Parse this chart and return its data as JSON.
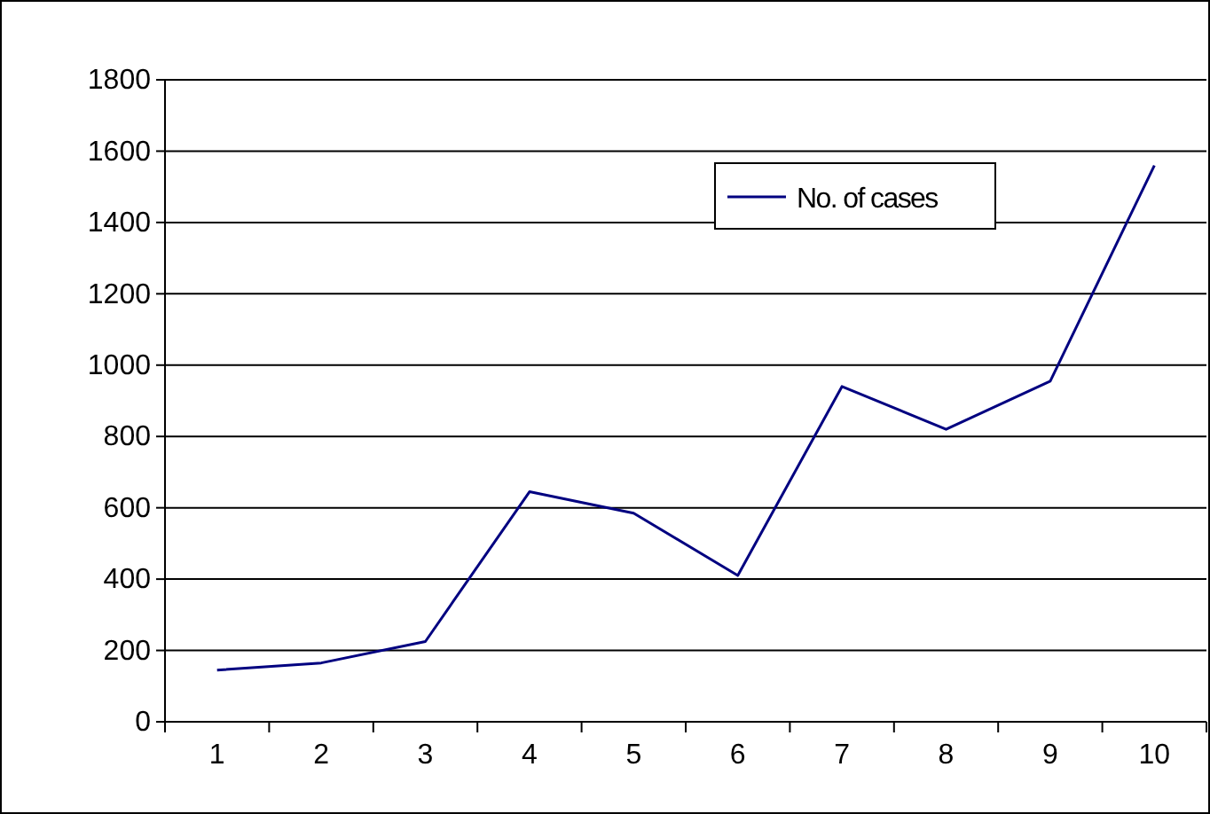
{
  "chart_data": {
    "type": "line",
    "categories": [
      "1",
      "2",
      "3",
      "4",
      "5",
      "6",
      "7",
      "8",
      "9",
      "10"
    ],
    "series": [
      {
        "name": "No. of cases",
        "color": "#000080",
        "values": [
          145,
          165,
          225,
          645,
          585,
          410,
          940,
          820,
          955,
          1560
        ]
      }
    ],
    "ylim": [
      0,
      1800
    ],
    "yticks": [
      0,
      200,
      400,
      600,
      800,
      1000,
      1200,
      1400,
      1600,
      1800
    ],
    "grid": "y",
    "legend": "top right",
    "marker": "none",
    "line_style": "solid"
  }
}
